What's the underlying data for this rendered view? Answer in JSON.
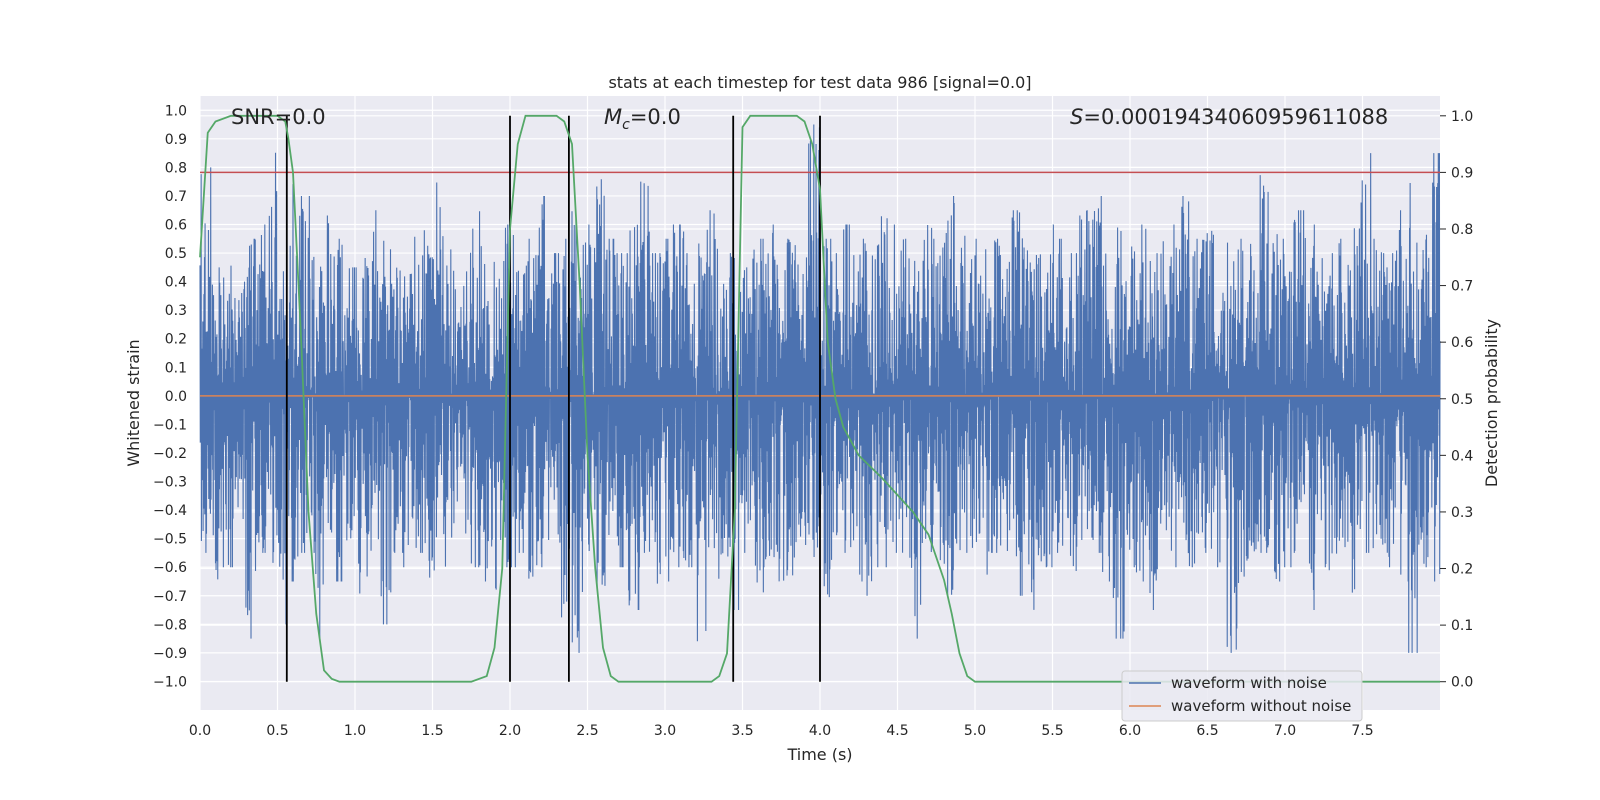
{
  "chart_data": {
    "type": "line",
    "title": "stats at each timestep for test data 986 [signal=0.0]",
    "xlabel": "Time (s)",
    "ylabel_left": "Whitened strain",
    "ylabel_right": "Detection probability",
    "xlim": [
      0.0,
      8.0
    ],
    "ylim_left": [
      -1.1,
      1.05
    ],
    "ylim_right": [
      -0.05,
      1.035
    ],
    "x_ticks": [
      "0.0",
      "0.5",
      "1.0",
      "1.5",
      "2.0",
      "2.5",
      "3.0",
      "3.5",
      "4.0",
      "4.5",
      "5.0",
      "5.5",
      "6.0",
      "6.5",
      "7.0",
      "7.5"
    ],
    "y_ticks_left": [
      "1.0",
      "0.9",
      "0.8",
      "0.7",
      "0.6",
      "0.5",
      "0.4",
      "0.3",
      "0.2",
      "0.1",
      "0.0",
      "−0.1",
      "−0.2",
      "−0.3",
      "−0.4",
      "−0.5",
      "−0.6",
      "−0.7",
      "−0.8",
      "−0.9",
      "−1.0"
    ],
    "y_ticks_right": [
      "1.0",
      "0.9",
      "0.8",
      "0.7",
      "0.6",
      "0.5",
      "0.4",
      "0.3",
      "0.2",
      "0.1",
      "0.0"
    ],
    "annotations": {
      "snr": "SNR=0.0",
      "mc_symbol": "M",
      "mc_sub": "c",
      "mc_value": "=0.0",
      "s_symbol": "S",
      "s_value": "=0.00019434060959611088"
    },
    "threshold": {
      "value": 0.9,
      "axis": "right",
      "color": "#c44e52"
    },
    "event_lines_s": [
      0.56,
      2.0,
      2.38,
      3.44,
      4.0
    ],
    "waveform_with_noise": {
      "name": "waveform with noise",
      "color": "#4c72b0",
      "envelope_pos": [
        0.8,
        0.45,
        0.5,
        0.4,
        0.55,
        0.6,
        0.95,
        0.45,
        0.75,
        0.7,
        0.5,
        0.65,
        0.6,
        0.45,
        0.55,
        0.65,
        0.55,
        0.5,
        0.45,
        0.6,
        0.55,
        0.75,
        0.6,
        0.5,
        0.65,
        0.55,
        0.5,
        0.6,
        0.5,
        0.55,
        0.7,
        0.5,
        0.55,
        0.65,
        0.6,
        0.8,
        0.55,
        0.5,
        0.6,
        0.75,
        0.5,
        0.55,
        0.6,
        0.5,
        0.55,
        0.65,
        0.55,
        0.5,
        0.45,
        0.55,
        0.6,
        0.5,
        0.55,
        0.5,
        0.95,
        0.55,
        0.5,
        0.6,
        0.55,
        0.55,
        0.65,
        0.6,
        0.55,
        0.5,
        0.6,
        0.55,
        0.7,
        0.6,
        0.55,
        0.6,
        0.55,
        0.5,
        0.65,
        0.55,
        0.6,
        0.6,
        0.55,
        0.5,
        0.65,
        0.75,
        0.55,
        0.6,
        0.55,
        0.6,
        0.5,
        0.55,
        0.6,
        0.7,
        0.55,
        0.6,
        0.5,
        0.55,
        0.55,
        0.6,
        0.8,
        0.6,
        0.55,
        0.65,
        0.6,
        0.55,
        0.5,
        0.55,
        0.6,
        0.85,
        0.55,
        0.5,
        0.65,
        0.75,
        0.6,
        0.85
      ],
      "envelope_neg": [
        -0.55,
        -0.7,
        -0.6,
        -0.5,
        -0.85,
        -0.55,
        -0.6,
        -0.8,
        -0.65,
        -0.55,
        -1.0,
        -0.6,
        -0.65,
        -0.55,
        -0.7,
        -0.6,
        -0.8,
        -0.55,
        -0.6,
        -0.55,
        -0.65,
        -0.6,
        -0.55,
        -0.5,
        -0.6,
        -0.65,
        -0.7,
        -0.6,
        -0.55,
        -0.65,
        -0.6,
        -0.55,
        -0.8,
        -0.9,
        -0.6,
        -0.7,
        -0.55,
        -0.6,
        -0.75,
        -0.55,
        -0.7,
        -0.65,
        -0.6,
        -0.6,
        -0.95,
        -0.55,
        -0.65,
        -0.75,
        -0.55,
        -0.7,
        -0.6,
        -0.85,
        -0.65,
        -0.55,
        -0.6,
        -0.75,
        -0.6,
        -0.55,
        -0.65,
        -0.7,
        -0.6,
        -0.55,
        -0.6,
        -0.85,
        -0.55,
        -0.6,
        -0.7,
        -0.6,
        -0.55,
        -0.65,
        -0.55,
        -0.6,
        -0.7,
        -0.75,
        -0.6,
        -0.6,
        -0.55,
        -0.65,
        -0.6,
        -0.55,
        -0.65,
        -0.85,
        -0.6,
        -0.65,
        -0.75,
        -0.55,
        -0.6,
        -0.65,
        -0.6,
        -0.55,
        -0.6,
        -0.9,
        -0.75,
        -0.6,
        -0.55,
        -0.65,
        -0.6,
        -0.55,
        -0.75,
        -0.6,
        -0.65,
        -0.6,
        -0.7,
        -0.55,
        -0.6,
        -0.6,
        -0.65,
        -0.9,
        -0.6,
        -0.65
      ]
    },
    "waveform_without_noise": {
      "name": "waveform without noise",
      "color": "#dd8452",
      "value": 0.0
    },
    "detection_probability": {
      "color": "#55a868",
      "x": [
        0.0,
        0.05,
        0.1,
        0.2,
        0.3,
        0.4,
        0.45,
        0.5,
        0.55,
        0.57,
        0.6,
        0.65,
        0.7,
        0.75,
        0.8,
        0.85,
        0.9,
        1.0,
        1.2,
        1.5,
        1.75,
        1.85,
        1.9,
        1.95,
        2.0,
        2.05,
        2.1,
        2.15,
        2.3,
        2.35,
        2.4,
        2.45,
        2.5,
        2.55,
        2.6,
        2.65,
        2.7,
        3.0,
        3.3,
        3.35,
        3.4,
        3.45,
        3.5,
        3.55,
        3.6,
        3.7,
        3.85,
        3.9,
        3.95,
        4.0,
        4.05,
        4.1,
        4.15,
        4.25,
        4.4,
        4.5,
        4.6,
        4.7,
        4.75,
        4.8,
        4.85,
        4.9,
        4.95,
        5.0,
        5.5,
        6.0,
        7.0,
        8.0
      ],
      "y": [
        0.75,
        0.97,
        0.99,
        1.0,
        1.0,
        1.0,
        1.0,
        1.0,
        0.99,
        0.96,
        0.9,
        0.62,
        0.3,
        0.12,
        0.02,
        0.005,
        0.0,
        0.0,
        0.0,
        0.0,
        0.0,
        0.01,
        0.06,
        0.2,
        0.8,
        0.95,
        1.0,
        1.0,
        1.0,
        0.99,
        0.95,
        0.7,
        0.4,
        0.2,
        0.06,
        0.01,
        0.0,
        0.0,
        0.0,
        0.01,
        0.05,
        0.3,
        0.98,
        1.0,
        1.0,
        1.0,
        1.0,
        0.99,
        0.95,
        0.87,
        0.6,
        0.5,
        0.45,
        0.4,
        0.36,
        0.33,
        0.3,
        0.26,
        0.22,
        0.18,
        0.12,
        0.05,
        0.01,
        0.0,
        0.0,
        0.0,
        0.0,
        0.0
      ]
    },
    "legend": {
      "location": "lower-right"
    }
  }
}
